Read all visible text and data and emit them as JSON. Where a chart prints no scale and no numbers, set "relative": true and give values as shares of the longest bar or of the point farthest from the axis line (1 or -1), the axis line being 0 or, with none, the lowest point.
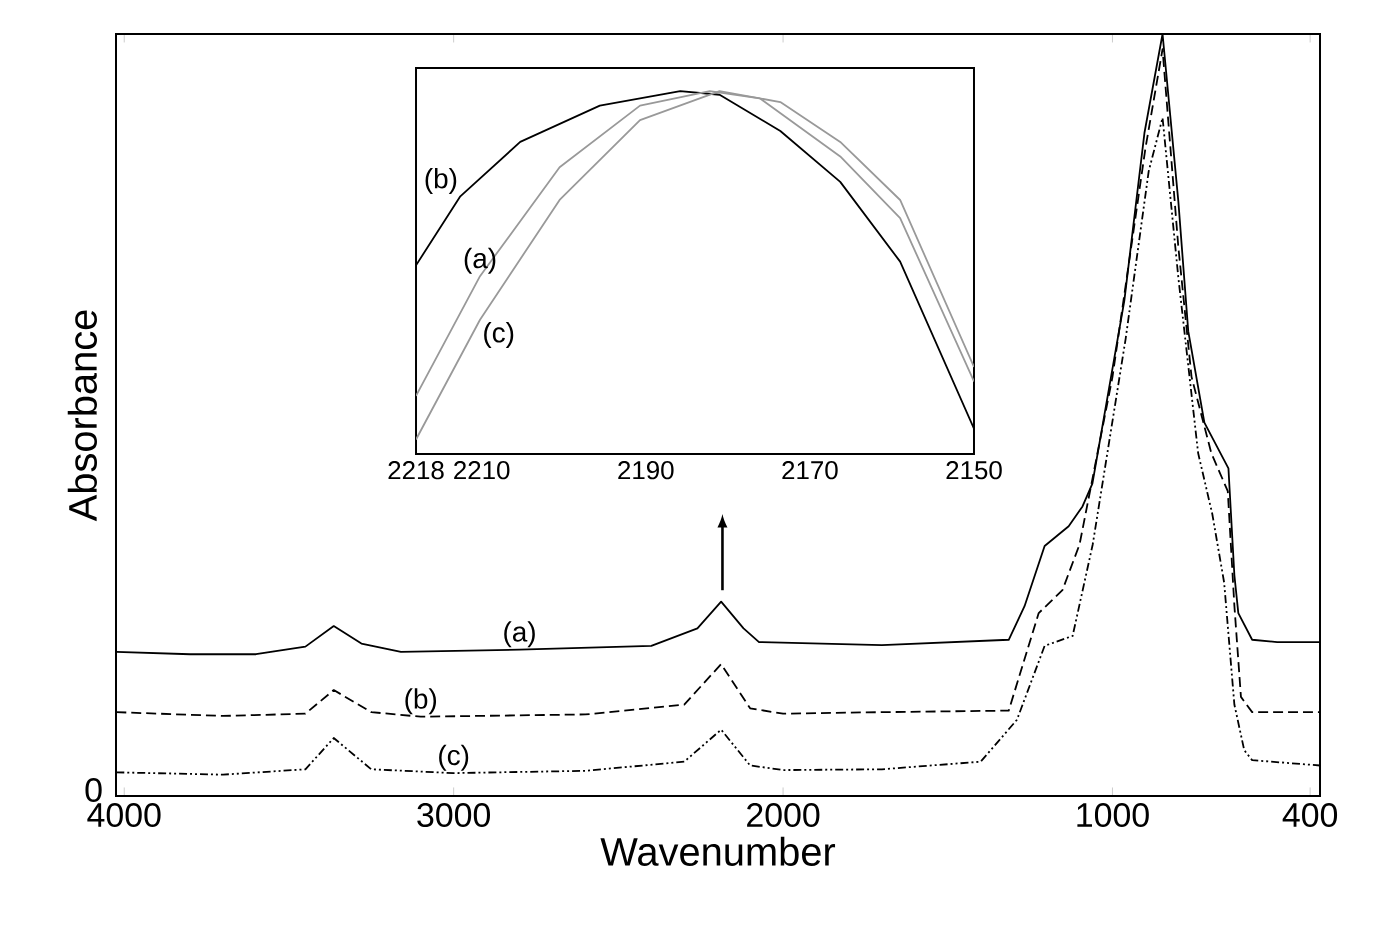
{
  "chart_data": [
    {
      "type": "line",
      "xlabel": "Wavenumber",
      "ylabel": "Absorbance",
      "relative": true,
      "xlim": [
        4025,
        370
      ],
      "xticks": [
        4000,
        3000,
        2000,
        1000,
        400
      ],
      "annotations": [
        "0"
      ],
      "series": [
        {
          "name": "(a)",
          "color": "#000000",
          "line_style": "solid",
          "x": [
            4024,
            3800,
            3600,
            3450,
            3364,
            3280,
            3160,
            2800,
            2400,
            2260,
            2188,
            2120,
            2073,
            1700,
            1315,
            1267,
            1206,
            1133,
            1091,
            1061,
            964,
            903,
            848,
            800,
            770,
            721,
            648,
            630,
            618,
            576,
            500,
            370
          ],
          "values": [
            0.189,
            0.186,
            0.186,
            0.196,
            0.223,
            0.2,
            0.189,
            0.192,
            0.197,
            0.22,
            0.255,
            0.22,
            0.202,
            0.198,
            0.205,
            0.249,
            0.328,
            0.354,
            0.38,
            0.41,
            0.65,
            0.87,
            1.0,
            0.78,
            0.61,
            0.49,
            0.43,
            0.29,
            0.24,
            0.205,
            0.202,
            0.202
          ]
        },
        {
          "name": "(b)",
          "color": "#000000",
          "line_style": "dashed",
          "x": [
            4024,
            3700,
            3450,
            3364,
            3250,
            3100,
            2600,
            2300,
            2188,
            2100,
            2000,
            1700,
            1315,
            1224,
            1152,
            1100,
            1000,
            900,
            848,
            800,
            760,
            700,
            650,
            630,
            610,
            576,
            370
          ],
          "values": [
            0.11,
            0.105,
            0.108,
            0.139,
            0.11,
            0.104,
            0.107,
            0.12,
            0.173,
            0.115,
            0.108,
            0.11,
            0.112,
            0.24,
            0.27,
            0.33,
            0.55,
            0.85,
            0.98,
            0.72,
            0.55,
            0.45,
            0.4,
            0.25,
            0.13,
            0.11,
            0.11
          ]
        },
        {
          "name": "(c)",
          "color": "#000000",
          "line_style": "dotted",
          "x": [
            4024,
            3700,
            3450,
            3364,
            3250,
            3000,
            2600,
            2300,
            2188,
            2100,
            2000,
            1700,
            1400,
            1290,
            1206,
            1121,
            1060,
            960,
            890,
            848,
            800,
            740,
            697,
            661,
            630,
            600,
            576,
            370
          ],
          "values": [
            0.031,
            0.028,
            0.035,
            0.076,
            0.035,
            0.03,
            0.033,
            0.045,
            0.087,
            0.04,
            0.034,
            0.035,
            0.045,
            0.1,
            0.197,
            0.21,
            0.33,
            0.6,
            0.82,
            0.89,
            0.68,
            0.45,
            0.37,
            0.28,
            0.12,
            0.06,
            0.047,
            0.04
          ]
        }
      ]
    },
    {
      "type": "line",
      "relative": true,
      "xlim": [
        2218,
        2150
      ],
      "xticks": [
        2218,
        2210,
        2190,
        2170,
        2150
      ],
      "series": [
        {
          "name": "(b)",
          "color": "#000000",
          "line_style": "solid",
          "x": [
            2218,
            2212.6,
            2205.3,
            2195.6,
            2185.8,
            2181,
            2173.6,
            2166.3,
            2159,
            2150
          ],
          "values": [
            0.52,
            0.71,
            0.86,
            0.96,
            1.0,
            0.99,
            0.89,
            0.75,
            0.53,
            0.07
          ]
        },
        {
          "name": "(a)",
          "color": "#999999",
          "line_style": "solid",
          "x": [
            2218,
            2210.2,
            2200.5,
            2190.7,
            2182.2,
            2176.1,
            2166.3,
            2159,
            2150
          ],
          "values": [
            0.16,
            0.49,
            0.79,
            0.96,
            1.0,
            0.98,
            0.82,
            0.65,
            0.2
          ]
        },
        {
          "name": "(c)",
          "color": "#999999",
          "line_style": "solid",
          "x": [
            2218,
            2210.2,
            2200.5,
            2190.7,
            2181,
            2173.6,
            2166.3,
            2159,
            2150
          ],
          "values": [
            0.04,
            0.37,
            0.7,
            0.92,
            1.0,
            0.97,
            0.86,
            0.7,
            0.24
          ]
        }
      ]
    }
  ]
}
